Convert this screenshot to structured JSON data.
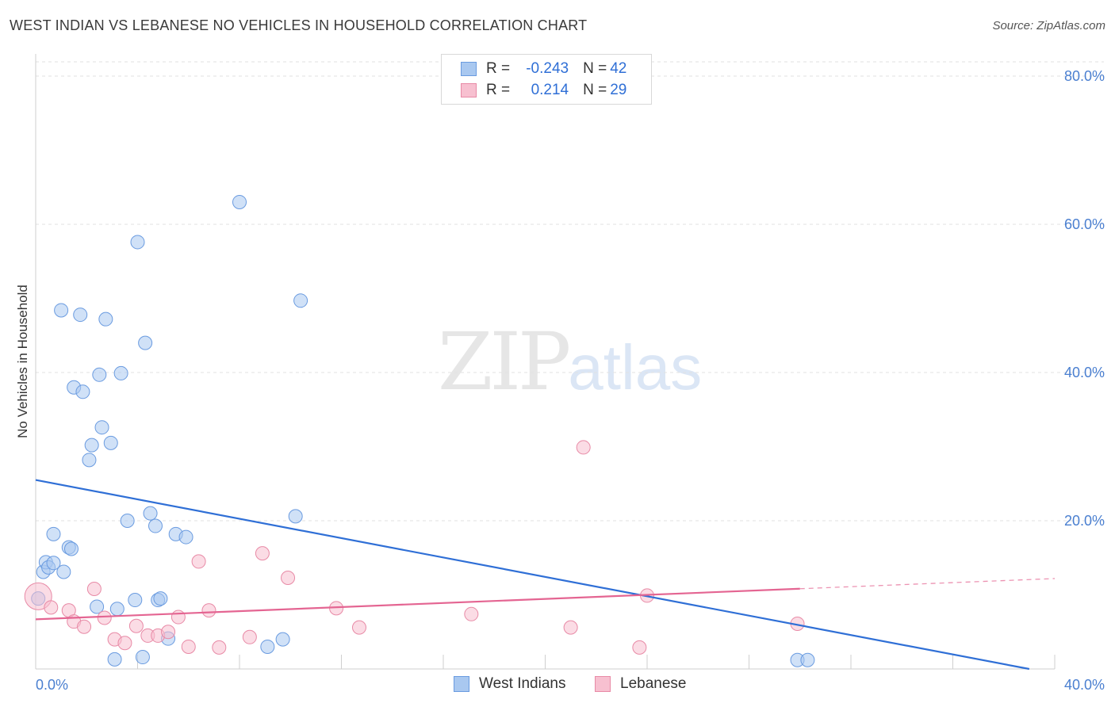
{
  "title": "WEST INDIAN VS LEBANESE NO VEHICLES IN HOUSEHOLD CORRELATION CHART",
  "source": "Source: ZipAtlas.com",
  "watermark": {
    "zip": "ZIP",
    "atlas": "atlas"
  },
  "legend": {
    "rows": [
      {
        "r_label": "R = ",
        "r_value": "-0.243",
        "n_label": "N = ",
        "n_value": "42",
        "color": "#a9c8f0",
        "border": "#6a9be0"
      },
      {
        "r_label": "R = ",
        "r_value": "0.214",
        "n_label": "N = ",
        "n_value": "29",
        "color": "#f7c0d0",
        "border": "#e88aa6"
      }
    ]
  },
  "bottom_legend": [
    {
      "label": "West Indians",
      "color": "#a9c8f0",
      "border": "#6a9be0"
    },
    {
      "label": "Lebanese",
      "color": "#f7c0d0",
      "border": "#e88aa6"
    }
  ],
  "chart_data": {
    "type": "scatter",
    "title": "WEST INDIAN VS LEBANESE NO VEHICLES IN HOUSEHOLD CORRELATION CHART",
    "xlabel": "",
    "ylabel": "No Vehicles in Household",
    "xlim": [
      0,
      40
    ],
    "ylim": [
      0,
      80
    ],
    "x_tick_labels": [
      "0.0%",
      "40.0%"
    ],
    "y_ticks": [
      {
        "value": 20,
        "label": "20.0%"
      },
      {
        "value": 40,
        "label": "40.0%"
      },
      {
        "value": 60,
        "label": "60.0%"
      },
      {
        "value": 80,
        "label": "80.0%"
      }
    ],
    "grid": true,
    "series": [
      {
        "name": "West Indians",
        "color": "#a9c8f0",
        "stroke": "#6a9be0",
        "points": [
          [
            0.1,
            9.5
          ],
          [
            0.3,
            13.1
          ],
          [
            0.4,
            14.4
          ],
          [
            0.5,
            13.7
          ],
          [
            0.7,
            14.3
          ],
          [
            0.7,
            18.2
          ],
          [
            1.0,
            48.4
          ],
          [
            1.1,
            13.1
          ],
          [
            1.3,
            16.4
          ],
          [
            1.4,
            16.2
          ],
          [
            1.5,
            38.0
          ],
          [
            1.75,
            47.8
          ],
          [
            1.85,
            37.4
          ],
          [
            2.1,
            28.2
          ],
          [
            2.2,
            30.2
          ],
          [
            2.4,
            8.4
          ],
          [
            2.5,
            39.7
          ],
          [
            2.6,
            32.6
          ],
          [
            2.75,
            47.2
          ],
          [
            2.95,
            30.5
          ],
          [
            3.1,
            1.3
          ],
          [
            3.2,
            8.1
          ],
          [
            3.35,
            39.9
          ],
          [
            3.6,
            20.0
          ],
          [
            3.9,
            9.3
          ],
          [
            4.0,
            57.6
          ],
          [
            4.2,
            1.6
          ],
          [
            4.3,
            44.0
          ],
          [
            4.5,
            21.0
          ],
          [
            4.7,
            19.3
          ],
          [
            4.8,
            9.3
          ],
          [
            4.9,
            9.5
          ],
          [
            5.2,
            4.1
          ],
          [
            5.5,
            18.2
          ],
          [
            5.9,
            17.8
          ],
          [
            8.0,
            63.0
          ],
          [
            9.1,
            3.0
          ],
          [
            9.7,
            4.0
          ],
          [
            10.2,
            20.6
          ],
          [
            10.4,
            49.7
          ],
          [
            29.9,
            1.2
          ],
          [
            30.3,
            1.2
          ]
        ]
      },
      {
        "name": "Lebanese",
        "color": "#f7c0d0",
        "stroke": "#e88aa6",
        "points": [
          [
            0.1,
            9.8
          ],
          [
            0.6,
            8.3
          ],
          [
            1.3,
            7.9
          ],
          [
            1.5,
            6.4
          ],
          [
            1.9,
            5.7
          ],
          [
            2.3,
            10.8
          ],
          [
            2.7,
            6.9
          ],
          [
            3.1,
            4.0
          ],
          [
            3.5,
            3.5
          ],
          [
            3.95,
            5.8
          ],
          [
            4.4,
            4.5
          ],
          [
            4.8,
            4.5
          ],
          [
            5.2,
            5.0
          ],
          [
            5.6,
            7.0
          ],
          [
            6.0,
            3.0
          ],
          [
            6.4,
            14.5
          ],
          [
            6.8,
            7.9
          ],
          [
            7.2,
            2.9
          ],
          [
            8.4,
            4.3
          ],
          [
            8.9,
            15.6
          ],
          [
            9.9,
            12.3
          ],
          [
            11.8,
            8.2
          ],
          [
            12.7,
            5.6
          ],
          [
            17.1,
            7.4
          ],
          [
            21.0,
            5.6
          ],
          [
            21.5,
            29.9
          ],
          [
            23.7,
            2.9
          ],
          [
            24.0,
            9.9
          ],
          [
            29.9,
            6.1
          ]
        ]
      }
    ],
    "trend_lines": [
      {
        "series": "West Indians",
        "color": "#2f6fd6",
        "x0": 0,
        "y0": 25.5,
        "x1": 39.0,
        "y1": 0.0,
        "dashed_from": null
      },
      {
        "series": "Lebanese",
        "color": "#e46592",
        "x0": 0,
        "y0": 6.7,
        "x1": 40.0,
        "y1": 12.2,
        "dashed_from": 30.0
      }
    ]
  }
}
